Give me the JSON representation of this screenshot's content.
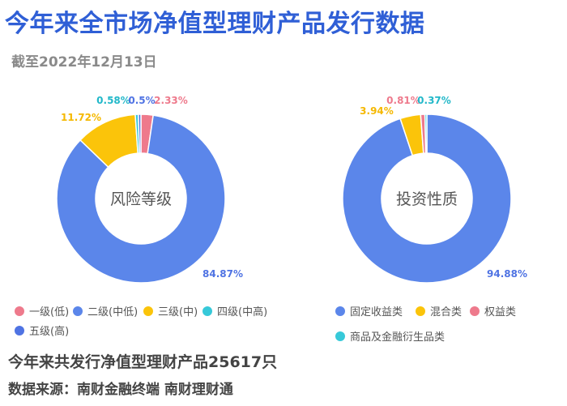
{
  "header": {
    "title": "今年来全市场净值型理财产品发行数据",
    "subtitle": "截至2022年12月13日"
  },
  "footer": {
    "count_text": "今年来共发行净值型理财产品25617只",
    "source_text": "数据来源：南财金融终端 南财理财通"
  },
  "chart_data": [
    {
      "type": "pie",
      "center_label": "风险等级",
      "categories": [
        "一级(低)",
        "二级(中低)",
        "三级(中)",
        "四级(中高)",
        "五级(高)"
      ],
      "values": [
        2.33,
        84.87,
        11.72,
        0.58,
        0.5
      ],
      "value_labels": [
        "2.33%",
        "84.87%",
        "11.72%",
        "0.58%",
        "0.5%"
      ],
      "colors": [
        "#ee7a8c",
        "#5b86ea",
        "#fbc40a",
        "#37c9d9",
        "#4f73e3"
      ],
      "label_colors": [
        "#ee7a8c",
        "#4f73e3",
        "#f5b800",
        "#22b8c9",
        "#4f73e3"
      ],
      "order": [
        0,
        1,
        2,
        3,
        4
      ],
      "legend_placement": "bottom"
    },
    {
      "type": "pie",
      "center_label": "投资性质",
      "categories": [
        "固定收益类",
        "混合类",
        "权益类",
        "商品及金融衍生品类"
      ],
      "values": [
        94.88,
        3.94,
        0.81,
        0.37
      ],
      "value_labels": [
        "94.88%",
        "3.94%",
        "0.81%",
        "0.37%"
      ],
      "colors": [
        "#5b86ea",
        "#fbc40a",
        "#ee7a8c",
        "#37c9d9"
      ],
      "label_colors": [
        "#4f73e3",
        "#f5b800",
        "#ee7a8c",
        "#22b8c9"
      ],
      "order": [
        0,
        1,
        2,
        3
      ],
      "legend_placement": "bottom"
    }
  ]
}
